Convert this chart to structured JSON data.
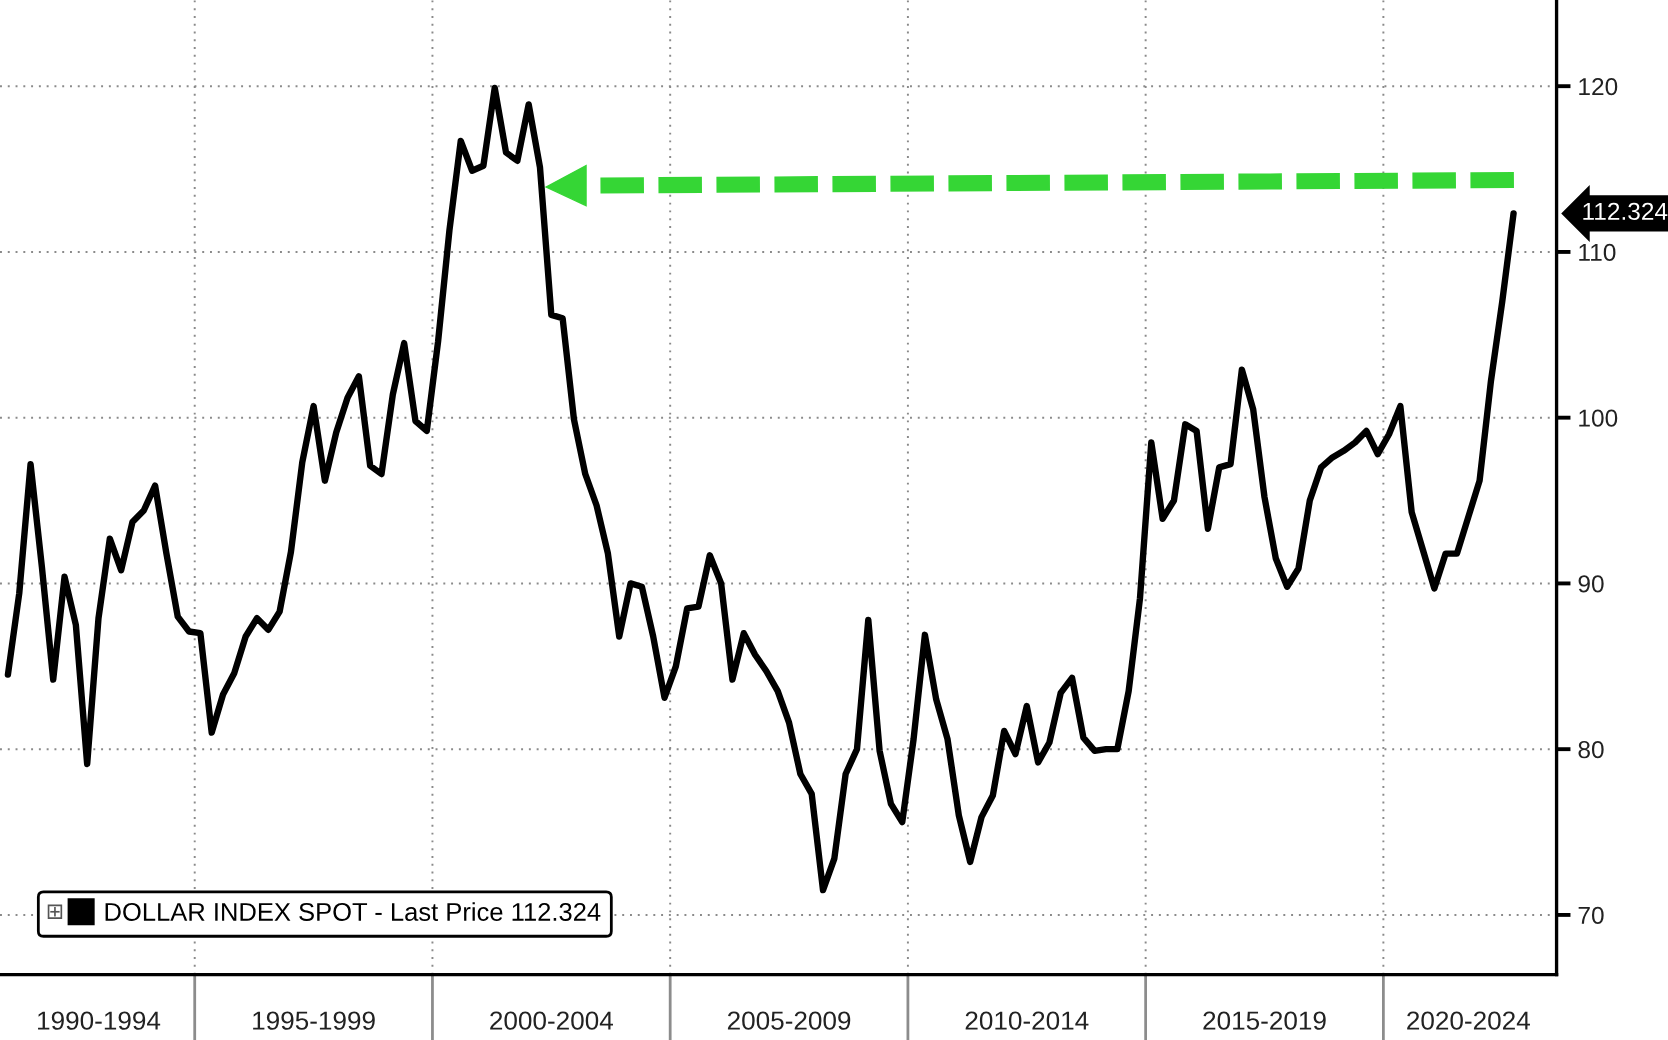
{
  "chart_data": {
    "type": "line",
    "categories": [
      null,
      null,
      null,
      null,
      null,
      null,
      null,
      null,
      "1990-1994",
      null,
      null,
      null,
      null,
      null,
      null,
      null,
      null,
      null,
      null,
      null,
      null,
      null,
      null,
      null,
      null,
      null,
      null,
      "1995-1999",
      null,
      null,
      null,
      null,
      null,
      null,
      null,
      null,
      null,
      null,
      null,
      null,
      null,
      null,
      null,
      null,
      null,
      null,
      null,
      null,
      "2000-2004",
      null,
      null,
      null,
      null,
      null,
      null,
      null,
      null,
      null,
      null,
      null,
      null,
      null,
      null,
      null,
      null,
      null,
      null,
      null,
      null,
      "2005-2009",
      null,
      null,
      null,
      null,
      null,
      null,
      null,
      null,
      null,
      null,
      null,
      null,
      null,
      null,
      null,
      null,
      null,
      null,
      null,
      null,
      "2010-2014",
      null,
      null,
      null,
      null,
      null,
      null,
      null,
      null,
      null,
      null,
      null,
      null,
      null,
      null,
      null,
      null,
      null,
      null,
      null,
      null,
      "2015-2019",
      null,
      null,
      null,
      null,
      null,
      null,
      null,
      null,
      null,
      null,
      null,
      null,
      null,
      null,
      null,
      null,
      null,
      "2020-2024",
      null,
      null,
      null,
      null
    ],
    "series": [
      {
        "name": "DOLLAR INDEX SPOT - Last Price 112.324",
        "color": "#000000",
        "values": [
          84.5,
          89.4,
          97.2,
          91.0,
          84.2,
          90.4,
          87.5,
          79.1,
          87.9,
          92.7,
          90.8,
          93.7,
          94.4,
          95.9,
          91.8,
          88.0,
          87.1,
          87.0,
          81.0,
          83.3,
          84.6,
          86.8,
          87.9,
          87.2,
          88.3,
          91.9,
          97.3,
          100.7,
          96.2,
          99.1,
          101.2,
          102.5,
          97.1,
          96.6,
          101.4,
          104.5,
          99.8,
          99.2,
          104.6,
          111.3,
          116.7,
          114.9,
          115.2,
          119.9,
          116.0,
          115.5,
          118.9,
          115.1,
          106.2,
          106.0,
          99.9,
          96.6,
          94.7,
          91.8,
          86.8,
          90.0,
          89.8,
          86.8,
          83.1,
          85.0,
          88.5,
          88.6,
          91.7,
          90.0,
          84.2,
          87.0,
          85.7,
          84.7,
          83.5,
          81.6,
          78.5,
          77.3,
          71.5,
          73.4,
          78.5,
          80.0,
          87.8,
          79.9,
          76.7,
          75.6,
          80.6,
          86.9,
          83.0,
          80.6,
          76.0,
          73.2,
          75.9,
          77.2,
          81.1,
          79.7,
          82.6,
          79.2,
          80.4,
          83.4,
          84.3,
          80.7,
          79.9,
          80.0,
          80.0,
          83.5,
          89.1,
          98.5,
          93.9,
          95.0,
          99.6,
          99.2,
          93.3,
          97.0,
          97.2,
          102.9,
          100.5,
          95.2,
          91.5,
          89.8,
          90.9,
          95.0,
          97.0,
          97.6,
          98.0,
          98.5,
          99.2,
          97.8,
          99.0,
          100.7,
          94.3,
          92.0,
          89.7,
          91.8,
          91.8,
          94.0,
          96.2,
          102.2,
          107.0,
          112.324
        ]
      }
    ],
    "ylim": [
      66.4,
      125.2
    ],
    "yticks": [
      70,
      80,
      90,
      100,
      110,
      120
    ],
    "grid": true,
    "legend": "bottom left",
    "annotations": [
      "112.324"
    ]
  }
}
